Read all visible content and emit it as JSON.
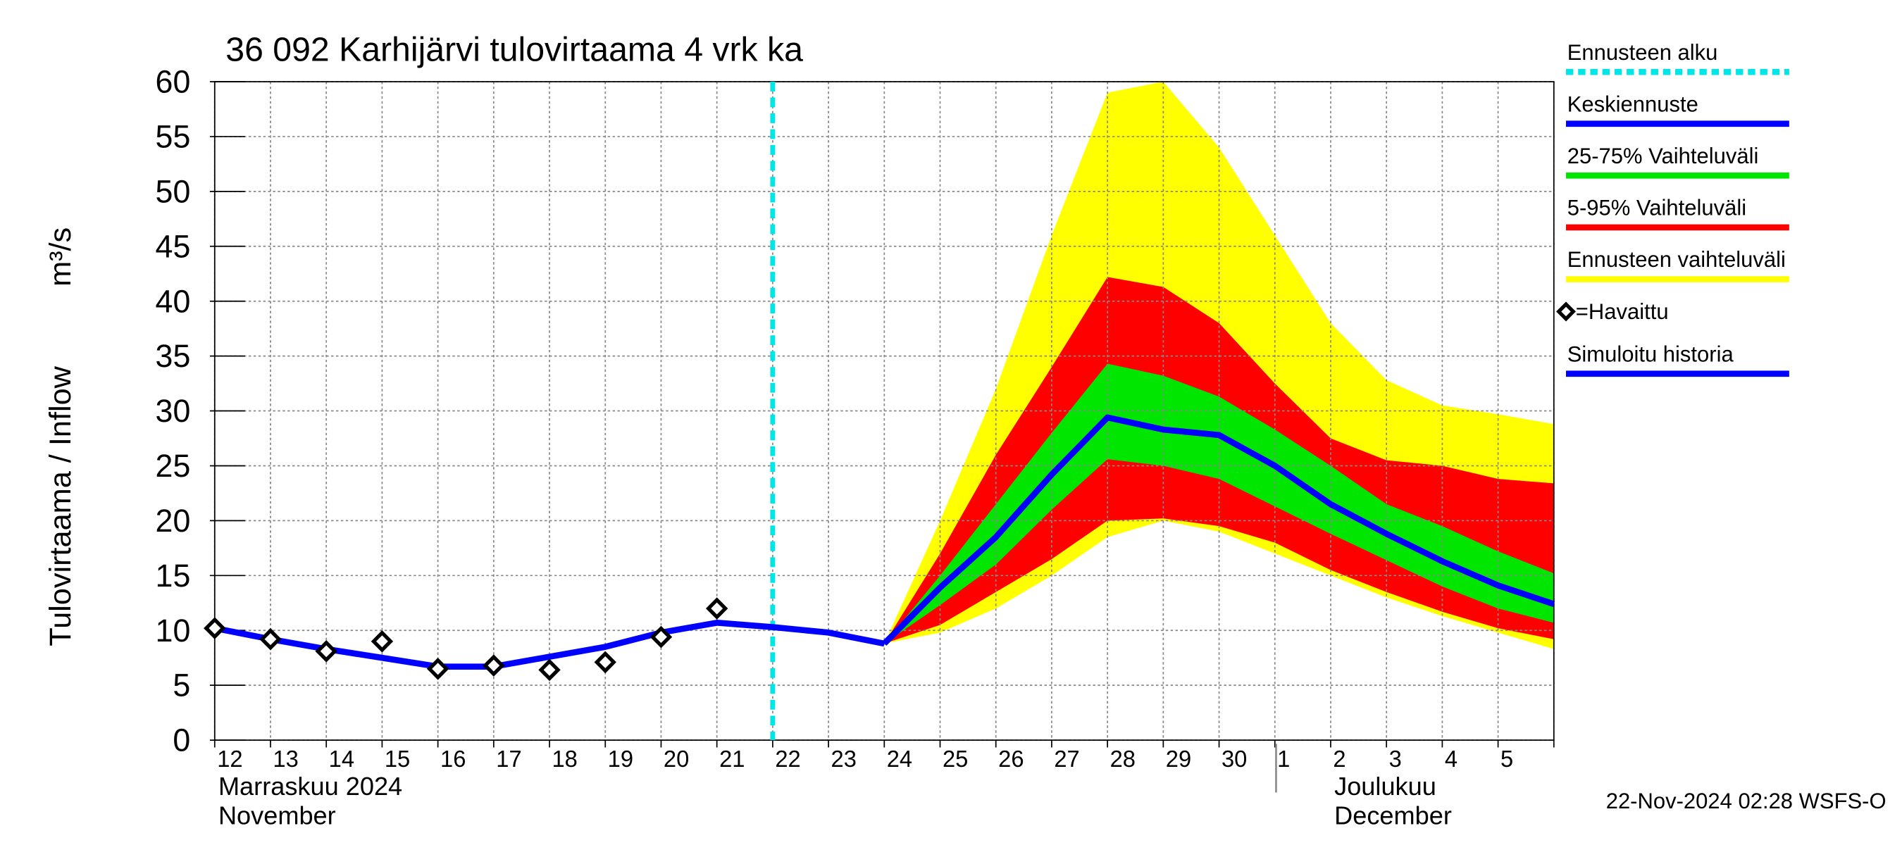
{
  "chart_data": {
    "type": "forecast",
    "title": "36 092 Karhijärvi tulovirtaama 4 vrk ka",
    "y_label": "Tulovirtaama / Inflow",
    "y_unit": "m³/s",
    "month_labels": [
      "Marraskuu 2024",
      "November",
      "Joulukuu",
      "December"
    ],
    "timestamp": "22-Nov-2024 02:28 WSFS-O",
    "categories": [
      "12",
      "13",
      "14",
      "15",
      "16",
      "17",
      "18",
      "19",
      "20",
      "21",
      "22",
      "23",
      "24",
      "25",
      "26",
      "27",
      "28",
      "29",
      "30",
      "1",
      "2",
      "3",
      "4",
      "5",
      null
    ],
    "ylim": [
      0,
      60
    ],
    "yticks": [
      0,
      5,
      10,
      15,
      20,
      25,
      30,
      35,
      40,
      45,
      50,
      55,
      60
    ],
    "grid": true,
    "forecast_start": {
      "name": "Ennusteen alku",
      "color": "#00e5e5",
      "x": 10
    },
    "series": [
      {
        "name": "Keskiennuste",
        "kind": "line",
        "color": "#0000ff",
        "values": [
          null,
          null,
          null,
          null,
          null,
          null,
          null,
          null,
          null,
          null,
          null,
          null,
          8.8,
          13.9,
          18.5,
          24.2,
          29.4,
          28.3,
          27.8,
          25.0,
          21.5,
          18.8,
          16.3,
          14.1,
          12.4
        ]
      },
      {
        "name": "25-75% Vaihteluväli",
        "kind": "band",
        "color": "#00e600",
        "high": [
          null,
          null,
          null,
          null,
          null,
          null,
          null,
          null,
          null,
          null,
          null,
          null,
          8.8,
          15,
          21.5,
          28,
          34.3,
          33.2,
          31.3,
          28.3,
          25,
          21.5,
          19.5,
          17.2,
          15.2
        ],
        "low": [
          null,
          null,
          null,
          null,
          null,
          null,
          null,
          null,
          null,
          null,
          null,
          null,
          8.8,
          12.3,
          16,
          21,
          25.6,
          25,
          23.8,
          21.3,
          18.8,
          16.4,
          14,
          12,
          10.7
        ]
      },
      {
        "name": "5-95% Vaihteluväli",
        "kind": "band",
        "color": "#ff0000",
        "high": [
          null,
          null,
          null,
          null,
          null,
          null,
          null,
          null,
          null,
          null,
          null,
          null,
          8.8,
          17,
          26,
          34,
          42.2,
          41.3,
          38,
          32.5,
          27.5,
          25.5,
          25,
          23.8,
          23.4
        ],
        "low": [
          null,
          null,
          null,
          null,
          null,
          null,
          null,
          null,
          null,
          null,
          null,
          null,
          8.8,
          10.5,
          13.5,
          16.5,
          20,
          20.2,
          19.5,
          18,
          15.5,
          13.5,
          11.7,
          10.2,
          9.2
        ]
      },
      {
        "name": "Ennusteen vaihteluväli",
        "kind": "band",
        "color": "#ffff00",
        "high": [
          null,
          null,
          null,
          null,
          null,
          null,
          null,
          null,
          null,
          null,
          null,
          null,
          8.8,
          20,
          32,
          46,
          59,
          60,
          54,
          46,
          38,
          32.8,
          30.5,
          29.7,
          28.8
        ],
        "low": [
          null,
          null,
          null,
          null,
          null,
          null,
          null,
          null,
          null,
          null,
          null,
          null,
          8.8,
          9.8,
          12,
          15,
          18.5,
          20,
          19,
          17,
          15,
          13,
          11.3,
          9.8,
          8.3
        ]
      },
      {
        "name": "=Havaittu",
        "kind": "points",
        "color": "#000000",
        "values": [
          10.2,
          9.2,
          8.1,
          9.0,
          6.5,
          6.8,
          6.4,
          7.1,
          9.4,
          12.0,
          null,
          null,
          null,
          null,
          null,
          null,
          null,
          null,
          null,
          null,
          null,
          null,
          null,
          null,
          null
        ]
      },
      {
        "name": "Simuloitu historia",
        "kind": "line",
        "color": "#0000ff",
        "values": [
          10.2,
          9.2,
          8.3,
          7.5,
          6.7,
          6.7,
          7.6,
          8.5,
          9.8,
          10.7,
          10.3,
          9.8,
          8.8,
          null,
          null,
          null,
          null,
          null,
          null,
          null,
          null,
          null,
          null,
          null,
          null
        ]
      }
    ]
  }
}
